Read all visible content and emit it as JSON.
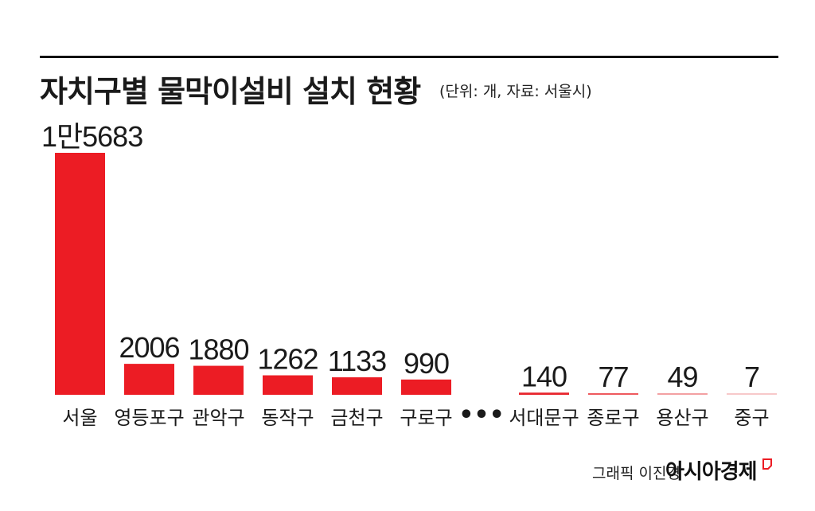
{
  "header": {
    "title": "자치구별 물막이설비 설치 현황",
    "note": "(단위: 개, 자료: 서울시)"
  },
  "chart_data": {
    "type": "bar",
    "title": "자치구별 물막이설비 설치 현황",
    "categories": [
      "서울",
      "영등포구",
      "관악구",
      "동작구",
      "금천구",
      "구로구",
      "서대문구",
      "종로구",
      "용산구",
      "중구"
    ],
    "values": [
      15683,
      2006,
      1880,
      1262,
      1133,
      990,
      140,
      77,
      49,
      7
    ],
    "value_labels": [
      "1만5683",
      "2006",
      "1880",
      "1262",
      "1133",
      "990",
      "140",
      "77",
      "49",
      "7"
    ],
    "gap_marker": "•••",
    "gap_after_index": 5,
    "colors": [
      "#ec1c24",
      "#ec1c24",
      "#ec1c24",
      "#ec1c24",
      "#ec1c24",
      "#ec1c24",
      "#e8242c",
      "#ee5a5e",
      "#f3a0a2",
      "#f7c9ca"
    ],
    "ylim": [
      0,
      15683
    ],
    "grid": false,
    "legend": "none"
  },
  "footer": {
    "credit": "그래픽 이진경",
    "brand": "아시아경제",
    "brand_color": "#ec1c24"
  }
}
